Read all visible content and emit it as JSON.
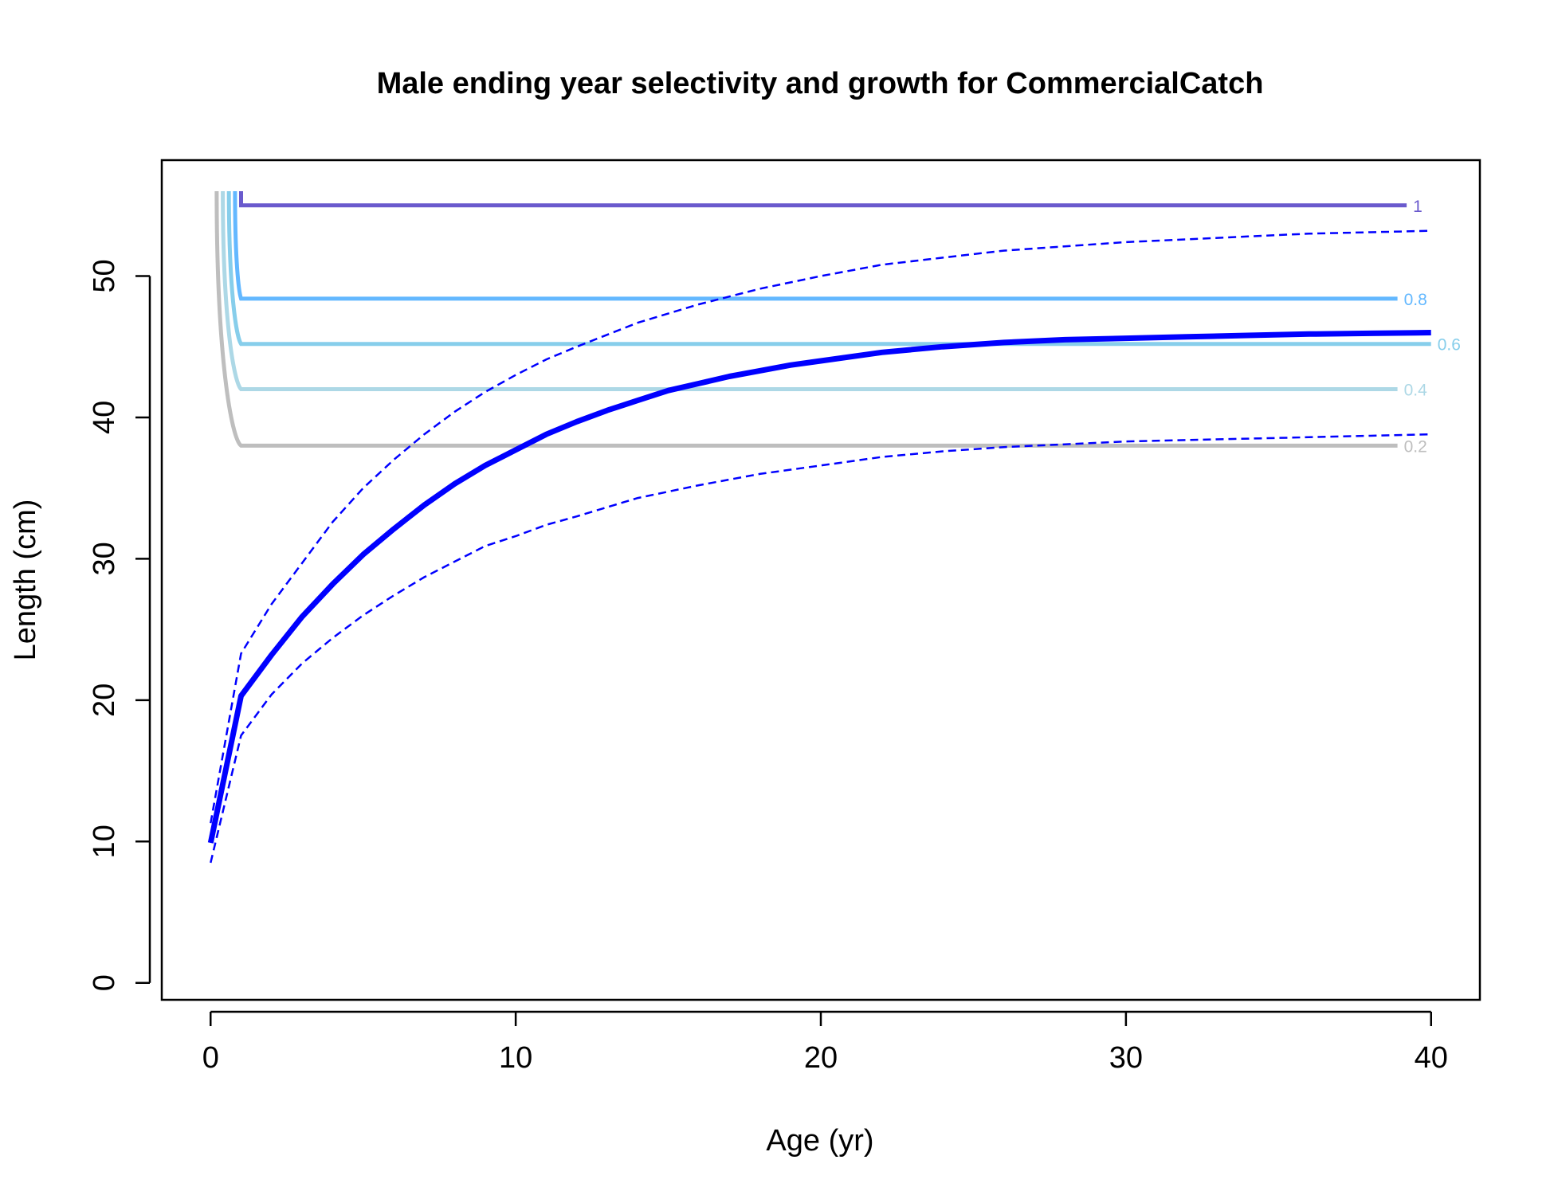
{
  "chart_data": {
    "type": "line",
    "title": "Male ending year selectivity and growth for CommercialCatch",
    "xlabel": "Age (yr)",
    "ylabel": "Length (cm)",
    "xlim": [
      -1.6,
      41.6
    ],
    "ylim": [
      -1.2,
      58.2
    ],
    "x_ticks": [
      0,
      10,
      20,
      30,
      40
    ],
    "y_ticks": [
      0,
      10,
      20,
      30,
      40,
      50
    ],
    "grid": false,
    "legend": "none",
    "growth": {
      "color": "#0000ff",
      "mean": {
        "x": [
          0,
          1,
          2,
          3,
          4,
          5,
          6,
          7,
          8,
          9,
          10,
          11,
          12,
          13,
          14,
          15,
          16,
          17,
          18,
          19,
          20,
          22,
          24,
          26,
          28,
          30,
          32,
          34,
          36,
          38,
          40
        ],
        "y": [
          9.9,
          20.3,
          23.2,
          25.9,
          28.2,
          30.3,
          32.1,
          33.8,
          35.3,
          36.6,
          37.7,
          38.8,
          39.7,
          40.5,
          41.2,
          41.9,
          42.4,
          42.9,
          43.3,
          43.7,
          44.0,
          44.6,
          45.0,
          45.3,
          45.5,
          45.6,
          45.7,
          45.8,
          45.9,
          45.95,
          46.0
        ]
      },
      "upper": {
        "x": [
          0,
          1,
          2,
          3,
          4,
          5,
          6,
          7,
          8,
          9,
          10,
          11,
          12,
          14,
          16,
          18,
          20,
          22,
          24,
          26,
          28,
          30,
          32,
          34,
          36,
          38,
          40
        ],
        "y": [
          11.3,
          23.3,
          26.8,
          29.7,
          32.6,
          35.0,
          37.0,
          38.8,
          40.4,
          41.8,
          43.0,
          44.1,
          45.0,
          46.7,
          48.0,
          49.1,
          50.0,
          50.8,
          51.3,
          51.8,
          52.1,
          52.4,
          52.6,
          52.8,
          53.0,
          53.1,
          53.2
        ]
      },
      "lower": {
        "x": [
          0,
          1,
          2,
          3,
          4,
          5,
          6,
          7,
          8,
          9,
          10,
          11,
          12,
          14,
          16,
          18,
          20,
          22,
          24,
          26,
          28,
          30,
          32,
          34,
          36,
          38,
          40
        ],
        "y": [
          8.5,
          17.5,
          20.4,
          22.6,
          24.4,
          26.0,
          27.4,
          28.7,
          29.8,
          30.9,
          31.6,
          32.4,
          33.0,
          34.3,
          35.2,
          36.0,
          36.6,
          37.2,
          37.6,
          37.9,
          38.1,
          38.3,
          38.4,
          38.5,
          38.6,
          38.7,
          38.8
        ]
      }
    },
    "selectivity_contours": [
      {
        "label": "0.2",
        "level": 0.2,
        "color": "#bebebe",
        "x_start": 0.2,
        "x_elbow": 1.0,
        "y_top": 56,
        "y_flat": 38.0,
        "x_end": 38.9
      },
      {
        "label": "0.4",
        "level": 0.4,
        "color": "#add8e6",
        "x_start": 0.4,
        "x_elbow": 1.0,
        "y_top": 56,
        "y_flat": 42.0,
        "x_end": 38.9
      },
      {
        "label": "0.6",
        "level": 0.6,
        "color": "#87ceeb",
        "x_start": 0.6,
        "x_elbow": 1.0,
        "y_top": 56,
        "y_flat": 45.2,
        "x_end": 40.0
      },
      {
        "label": "0.8",
        "level": 0.8,
        "color": "#63b8ff",
        "x_start": 0.8,
        "x_elbow": 1.0,
        "y_top": 56,
        "y_flat": 48.4,
        "x_end": 38.9
      },
      {
        "label": "1",
        "level": 1.0,
        "color": "#6a5acd",
        "x_start": 1.0,
        "x_elbow": 1.0,
        "y_top": 56,
        "y_flat": 55.0,
        "x_end": 39.2
      }
    ]
  }
}
